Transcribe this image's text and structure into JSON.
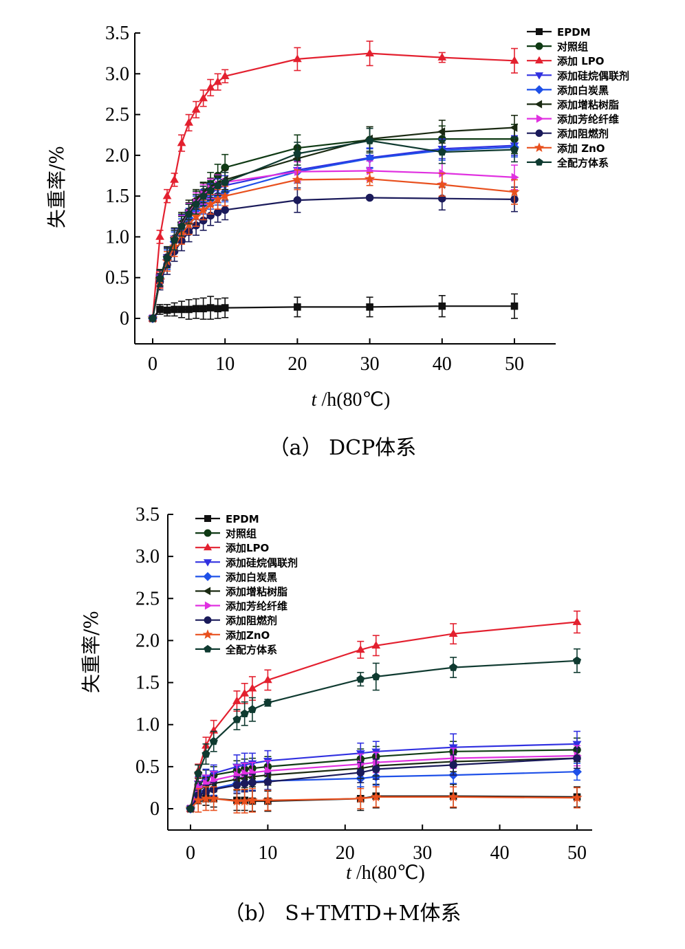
{
  "chart_data": [
    {
      "panel": "a",
      "type": "line",
      "caption": "（a） DCP体系",
      "xlabel_italic": "t",
      "xlabel_rest": "/h(80℃)",
      "ylabel": "失重率/%",
      "xlim": [
        0,
        50
      ],
      "ylim": [
        0,
        3.5
      ],
      "xticks": [
        0,
        10,
        20,
        30,
        40,
        50
      ],
      "yticks": [
        0,
        0.5,
        1.0,
        1.5,
        2.0,
        2.5,
        3.0,
        3.5
      ],
      "ytick_labels": [
        "0",
        "0.5",
        "1.0",
        "1.5",
        "2.0",
        "2.5",
        "3.0",
        "3.5"
      ],
      "legend_position": "top-right",
      "series": [
        {
          "name": "EPDM",
          "color": "#111111",
          "marker": "square",
          "x": [
            0,
            1,
            2,
            3,
            4,
            5,
            6,
            7,
            8,
            9,
            10,
            20,
            30,
            40,
            50
          ],
          "y": [
            0,
            0.11,
            0.1,
            0.11,
            0.11,
            0.11,
            0.12,
            0.12,
            0.13,
            0.12,
            0.13,
            0.14,
            0.14,
            0.15,
            0.15
          ],
          "err": [
            0,
            0.06,
            0.07,
            0.08,
            0.1,
            0.12,
            0.12,
            0.13,
            0.14,
            0.12,
            0.12,
            0.12,
            0.12,
            0.13,
            0.15
          ]
        },
        {
          "name": "对照组",
          "color": "#0f3a14",
          "marker": "circle",
          "x": [
            0,
            1,
            2,
            3,
            4,
            5,
            6,
            7,
            8,
            9,
            10,
            20,
            30,
            40,
            50
          ],
          "y": [
            0,
            0.5,
            0.75,
            0.98,
            1.16,
            1.3,
            1.44,
            1.55,
            1.65,
            1.75,
            1.85,
            2.09,
            2.19,
            2.2,
            2.2
          ],
          "err": [
            0,
            0.1,
            0.12,
            0.12,
            0.12,
            0.12,
            0.12,
            0.12,
            0.14,
            0.14,
            0.16,
            0.16,
            0.16,
            0.16,
            0.18
          ]
        },
        {
          "name": "添加 LPO",
          "color": "#e3202f",
          "marker": "triangle-up",
          "x": [
            0,
            1,
            2,
            3,
            4,
            5,
            6,
            7,
            8,
            9,
            10,
            20,
            30,
            40,
            50
          ],
          "y": [
            0,
            1.0,
            1.5,
            1.7,
            2.15,
            2.4,
            2.56,
            2.7,
            2.83,
            2.9,
            2.97,
            3.18,
            3.25,
            3.2,
            3.16
          ],
          "err": [
            0,
            0.08,
            0.08,
            0.08,
            0.1,
            0.1,
            0.1,
            0.1,
            0.1,
            0.1,
            0.08,
            0.14,
            0.15,
            0.06,
            0.15
          ]
        },
        {
          "name": "添加硅烷偶联剂",
          "color": "#3030e0",
          "marker": "triangle-down",
          "x": [
            0,
            1,
            2,
            3,
            4,
            5,
            6,
            7,
            8,
            9,
            10,
            20,
            30,
            40,
            50
          ],
          "y": [
            0,
            0.5,
            0.75,
            0.98,
            1.15,
            1.28,
            1.38,
            1.46,
            1.53,
            1.59,
            1.63,
            1.82,
            1.97,
            2.08,
            2.12
          ],
          "err": [
            0,
            0.1,
            0.12,
            0.12,
            0.12,
            0.12,
            0.12,
            0.12,
            0.12,
            0.12,
            0.12,
            0.14,
            0.12,
            0.12,
            0.12
          ]
        },
        {
          "name": "添加白炭黑",
          "color": "#1e50e8",
          "marker": "diamond",
          "x": [
            0,
            1,
            2,
            3,
            4,
            5,
            6,
            7,
            8,
            9,
            10,
            20,
            30,
            40,
            50
          ],
          "y": [
            0,
            0.48,
            0.72,
            0.94,
            1.1,
            1.23,
            1.33,
            1.4,
            1.46,
            1.51,
            1.55,
            1.8,
            1.96,
            2.06,
            2.1
          ],
          "err": [
            0,
            0.1,
            0.12,
            0.12,
            0.12,
            0.12,
            0.12,
            0.12,
            0.12,
            0.12,
            0.12,
            0.14,
            0.12,
            0.12,
            0.12
          ]
        },
        {
          "name": "添加增粘树脂",
          "color": "#1a2a12",
          "marker": "triangle-left",
          "x": [
            0,
            1,
            2,
            3,
            4,
            5,
            6,
            7,
            8,
            9,
            10,
            20,
            30,
            40,
            50
          ],
          "y": [
            0,
            0.5,
            0.76,
            0.99,
            1.18,
            1.33,
            1.46,
            1.54,
            1.6,
            1.65,
            1.7,
            1.96,
            2.2,
            2.29,
            2.34
          ],
          "err": [
            0,
            0.1,
            0.12,
            0.12,
            0.12,
            0.12,
            0.12,
            0.12,
            0.12,
            0.12,
            0.12,
            0.14,
            0.15,
            0.14,
            0.15
          ]
        },
        {
          "name": "添加芳纶纤维",
          "color": "#e030e0",
          "marker": "triangle-right",
          "x": [
            0,
            1,
            2,
            3,
            4,
            5,
            6,
            7,
            8,
            9,
            10,
            20,
            30,
            40,
            50
          ],
          "y": [
            0,
            0.48,
            0.74,
            0.96,
            1.14,
            1.29,
            1.42,
            1.52,
            1.59,
            1.64,
            1.67,
            1.8,
            1.81,
            1.78,
            1.73
          ],
          "err": [
            0,
            0.1,
            0.12,
            0.12,
            0.12,
            0.12,
            0.12,
            0.12,
            0.12,
            0.12,
            0.12,
            0.12,
            0.12,
            0.12,
            0.15
          ]
        },
        {
          "name": "添加阻燃剂",
          "color": "#1a1a5a",
          "marker": "circle",
          "x": [
            0,
            1,
            2,
            3,
            4,
            5,
            6,
            7,
            8,
            9,
            10,
            20,
            30,
            40,
            50
          ],
          "y": [
            0,
            0.45,
            0.66,
            0.82,
            0.95,
            1.06,
            1.14,
            1.2,
            1.26,
            1.3,
            1.33,
            1.45,
            1.48,
            1.47,
            1.46
          ],
          "err": [
            0,
            0.1,
            0.12,
            0.12,
            0.12,
            0.12,
            0.12,
            0.12,
            0.12,
            0.12,
            0.12,
            0.15,
            0.02,
            0.14,
            0.15
          ]
        },
        {
          "name": "添加 ZnO",
          "color": "#e8501e",
          "marker": "star",
          "x": [
            0,
            1,
            2,
            3,
            4,
            5,
            6,
            7,
            8,
            9,
            10,
            20,
            30,
            40,
            50
          ],
          "y": [
            0,
            0.47,
            0.7,
            0.88,
            1.03,
            1.15,
            1.25,
            1.33,
            1.4,
            1.46,
            1.5,
            1.7,
            1.71,
            1.64,
            1.55
          ],
          "err": [
            0,
            0.1,
            0.12,
            0.12,
            0.12,
            0.12,
            0.12,
            0.12,
            0.12,
            0.12,
            0.12,
            0.12,
            0.08,
            0.14,
            0.15
          ]
        },
        {
          "name": "全配方体系",
          "color": "#0f3a30",
          "marker": "pentagon",
          "x": [
            0,
            1,
            2,
            3,
            4,
            5,
            6,
            7,
            8,
            9,
            10,
            20,
            30,
            40,
            50
          ],
          "y": [
            0,
            0.49,
            0.74,
            0.96,
            1.13,
            1.28,
            1.4,
            1.5,
            1.57,
            1.63,
            1.67,
            2.02,
            2.18,
            2.04,
            2.07
          ],
          "err": [
            0,
            0.1,
            0.12,
            0.12,
            0.12,
            0.12,
            0.12,
            0.12,
            0.12,
            0.12,
            0.12,
            0.14,
            0.15,
            0.14,
            0.15
          ]
        }
      ]
    },
    {
      "panel": "b",
      "type": "line",
      "caption": "（b） S+TMTD+M体系",
      "xlabel_italic": "t",
      "xlabel_rest": "/h(80℃)",
      "ylabel": "失重率/%",
      "xlim": [
        0,
        50
      ],
      "ylim": [
        0,
        3.5
      ],
      "xticks": [
        0,
        10,
        20,
        30,
        40,
        50
      ],
      "yticks": [
        0,
        0.5,
        1.0,
        1.5,
        2.0,
        2.5,
        3.0,
        3.5
      ],
      "ytick_labels": [
        "0",
        "0.5",
        "1.0",
        "1.5",
        "2.0",
        "2.5",
        "3.0",
        "3.5"
      ],
      "legend_position": "top-left",
      "series": [
        {
          "name": "EPDM",
          "color": "#111111",
          "marker": "square",
          "x": [
            0,
            1,
            2,
            3,
            6,
            7,
            8,
            10,
            22,
            24,
            34,
            50
          ],
          "y": [
            0,
            0.12,
            0.12,
            0.12,
            0.1,
            0.1,
            0.09,
            0.09,
            0.12,
            0.15,
            0.15,
            0.14
          ],
          "err": [
            0,
            0.06,
            0.08,
            0.1,
            0.12,
            0.12,
            0.12,
            0.12,
            0.14,
            0.14,
            0.14,
            0.12
          ]
        },
        {
          "name": "对照组",
          "color": "#0f3a14",
          "marker": "circle",
          "x": [
            0,
            1,
            2,
            3,
            6,
            7,
            8,
            10,
            22,
            24,
            34,
            50
          ],
          "y": [
            0,
            0.28,
            0.36,
            0.4,
            0.45,
            0.47,
            0.48,
            0.5,
            0.59,
            0.62,
            0.68,
            0.7
          ],
          "err": [
            0,
            0.08,
            0.1,
            0.1,
            0.12,
            0.12,
            0.12,
            0.12,
            0.12,
            0.12,
            0.12,
            0.14
          ]
        },
        {
          "name": "添加LPO",
          "color": "#e3202f",
          "marker": "triangle-up",
          "x": [
            0,
            1,
            2,
            3,
            6,
            7,
            8,
            10,
            22,
            24,
            34,
            50
          ],
          "y": [
            0,
            0.45,
            0.75,
            0.93,
            1.28,
            1.37,
            1.43,
            1.53,
            1.89,
            1.94,
            2.08,
            2.22
          ],
          "err": [
            0,
            0.08,
            0.1,
            0.12,
            0.12,
            0.12,
            0.14,
            0.12,
            0.1,
            0.12,
            0.12,
            0.13
          ]
        },
        {
          "name": "添加硅烷偶联剂",
          "color": "#3030e0",
          "marker": "triangle-down",
          "x": [
            0,
            1,
            2,
            3,
            6,
            7,
            8,
            10,
            22,
            24,
            34,
            50
          ],
          "y": [
            0,
            0.3,
            0.37,
            0.42,
            0.5,
            0.52,
            0.54,
            0.57,
            0.66,
            0.68,
            0.73,
            0.77
          ],
          "err": [
            0,
            0.08,
            0.1,
            0.1,
            0.14,
            0.14,
            0.12,
            0.12,
            0.12,
            0.12,
            0.16,
            0.15
          ]
        },
        {
          "name": "添加白炭黑",
          "color": "#1e50e8",
          "marker": "diamond",
          "x": [
            0,
            1,
            2,
            3,
            6,
            7,
            8,
            10,
            22,
            24,
            34,
            50
          ],
          "y": [
            0,
            0.18,
            0.21,
            0.24,
            0.3,
            0.31,
            0.32,
            0.33,
            0.36,
            0.38,
            0.4,
            0.44
          ],
          "err": [
            0,
            0.06,
            0.08,
            0.08,
            0.1,
            0.1,
            0.1,
            0.1,
            0.1,
            0.1,
            0.1,
            0.1
          ]
        },
        {
          "name": "添加增粘树脂",
          "color": "#1a2a12",
          "marker": "triangle-left",
          "x": [
            0,
            1,
            2,
            3,
            6,
            7,
            8,
            10,
            22,
            24,
            34,
            50
          ],
          "y": [
            0,
            0.22,
            0.27,
            0.3,
            0.35,
            0.37,
            0.38,
            0.4,
            0.48,
            0.51,
            0.56,
            0.6
          ],
          "err": [
            0,
            0.08,
            0.1,
            0.1,
            0.12,
            0.12,
            0.12,
            0.12,
            0.12,
            0.12,
            0.12,
            0.12
          ]
        },
        {
          "name": "添加芳纶纤维",
          "color": "#e030e0",
          "marker": "triangle-right",
          "x": [
            0,
            1,
            2,
            3,
            6,
            7,
            8,
            10,
            22,
            24,
            34,
            50
          ],
          "y": [
            0,
            0.25,
            0.3,
            0.34,
            0.4,
            0.42,
            0.43,
            0.45,
            0.53,
            0.55,
            0.6,
            0.63
          ],
          "err": [
            0,
            0.08,
            0.1,
            0.1,
            0.12,
            0.12,
            0.12,
            0.12,
            0.12,
            0.12,
            0.12,
            0.12
          ]
        },
        {
          "name": "添加阻燃剂",
          "color": "#1a1a5a",
          "marker": "circle",
          "x": [
            0,
            1,
            2,
            3,
            6,
            7,
            8,
            10,
            22,
            24,
            34,
            50
          ],
          "y": [
            0,
            0.16,
            0.2,
            0.23,
            0.28,
            0.3,
            0.31,
            0.32,
            0.43,
            0.47,
            0.52,
            0.6
          ],
          "err": [
            0,
            0.06,
            0.08,
            0.08,
            0.1,
            0.1,
            0.1,
            0.1,
            0.12,
            0.12,
            0.12,
            0.12
          ]
        },
        {
          "name": "添加ZnO",
          "color": "#e8501e",
          "marker": "star",
          "x": [
            0,
            1,
            2,
            3,
            6,
            7,
            8,
            10,
            22,
            24,
            34,
            50
          ],
          "y": [
            0,
            0.1,
            0.12,
            0.12,
            0.09,
            0.09,
            0.1,
            0.1,
            0.12,
            0.14,
            0.14,
            0.13
          ],
          "err": [
            0,
            0.14,
            0.14,
            0.14,
            0.14,
            0.14,
            0.14,
            0.12,
            0.12,
            0.12,
            0.12,
            0.12
          ]
        },
        {
          "name": "全配方体系",
          "color": "#0f3a30",
          "marker": "pentagon",
          "x": [
            0,
            1,
            2,
            3,
            6,
            7,
            8,
            10,
            22,
            24,
            34,
            50
          ],
          "y": [
            0,
            0.42,
            0.65,
            0.8,
            1.06,
            1.13,
            1.18,
            1.26,
            1.54,
            1.57,
            1.68,
            1.76
          ],
          "err": [
            0,
            0.1,
            0.12,
            0.12,
            0.12,
            0.14,
            0.14,
            0.04,
            0.08,
            0.16,
            0.12,
            0.14
          ]
        }
      ]
    }
  ]
}
